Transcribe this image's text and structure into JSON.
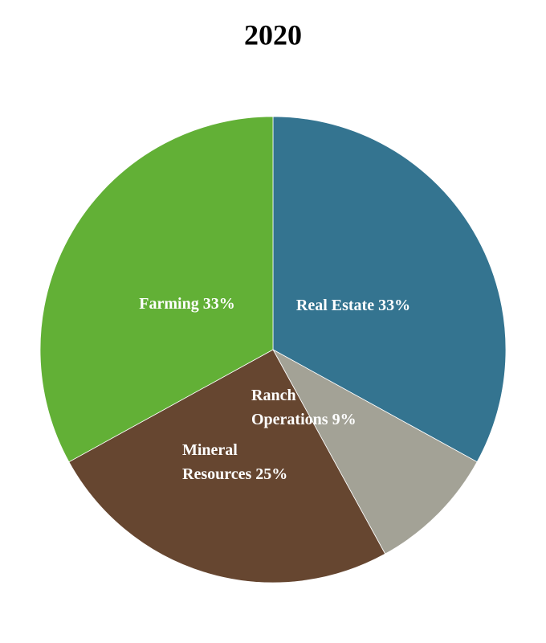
{
  "chart_data": {
    "type": "pie",
    "title": "2020",
    "categories": [
      "Real Estate",
      "Ranch Operations",
      "Mineral Resources",
      "Farming"
    ],
    "values": [
      33,
      9,
      25,
      33
    ],
    "value_labels": [
      "33%",
      "9%",
      "25%",
      "33%"
    ],
    "colors": [
      "#347490",
      "#a3a296",
      "#664630",
      "#62b036"
    ]
  }
}
